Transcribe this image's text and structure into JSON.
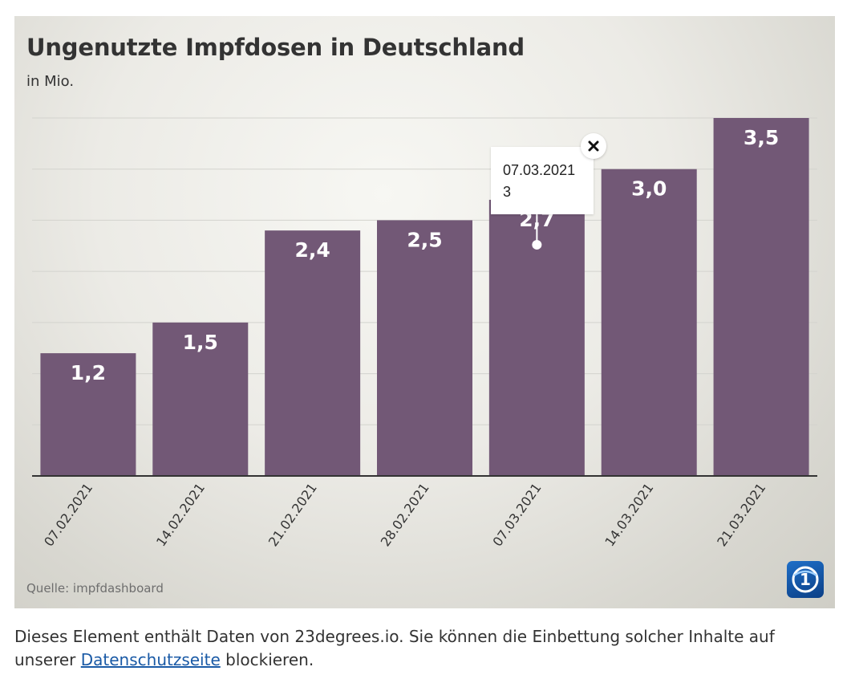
{
  "chart_data": {
    "type": "bar",
    "title": "Ungenutzte Impfdosen in Deutschland",
    "subtitle": "in Mio.",
    "categories": [
      "07.02.2021",
      "14.02.2021",
      "21.02.2021",
      "28.02.2021",
      "07.03.2021",
      "14.03.2021",
      "21.03.2021"
    ],
    "values": [
      1.2,
      1.5,
      2.4,
      2.5,
      2.7,
      3.0,
      3.5
    ],
    "value_labels": [
      "1,2",
      "1,5",
      "2,4",
      "2,5",
      "2,7",
      "3,0",
      "3,5"
    ],
    "ylim": [
      0,
      3.5
    ],
    "grid": true,
    "bar_color": "#725876",
    "value_label_color": "#ffffff",
    "tooltip": {
      "category": "07.03.2021",
      "date": "07.03.2021",
      "value": "3"
    }
  },
  "source": "Quelle: impfdashboard",
  "logo": {
    "icon": "ard-das-erste-logo-icon",
    "text": "1"
  },
  "close_icon": "close-icon",
  "notice": {
    "text_before": "Dieses Element enthält Daten von 23degrees.io. Sie können die Einbettung solcher Inhalte auf unserer",
    "link": "Datenschutzseite",
    "text_after": "blockieren."
  }
}
